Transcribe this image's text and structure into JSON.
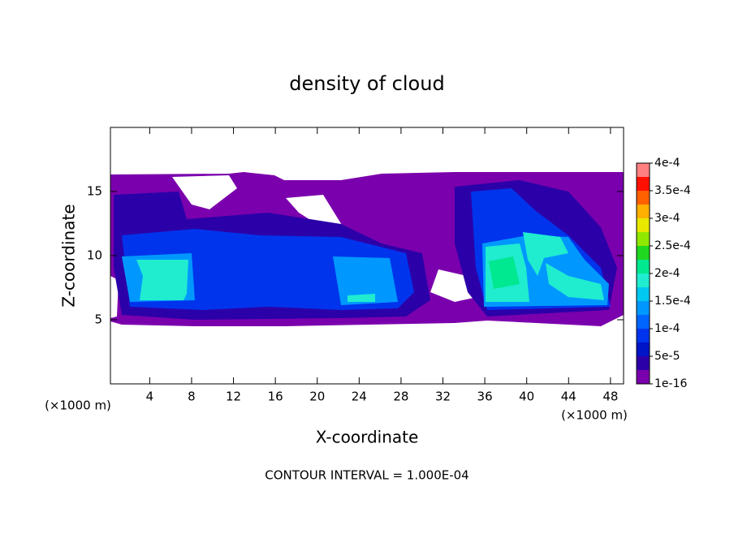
{
  "chart_data": {
    "type": "contour",
    "title": "density of cloud",
    "xlabel": "X-coordinate",
    "ylabel": "Z-coordinate",
    "x_unit_left": "(×1000 m)",
    "x_unit_right": "(×1000 m)",
    "annotation": "CONTOUR INTERVAL = 1.000E-04",
    "xlim": [
      0.25,
      49.25
    ],
    "xticks": [
      4,
      8,
      12,
      16,
      20,
      24,
      28,
      32,
      36,
      40,
      44,
      48
    ],
    "ylim": [
      0,
      20
    ],
    "yticks": [
      5,
      10,
      15
    ],
    "colorbar": {
      "lim": [
        0,
        0.0004
      ],
      "ticks": [
        1e-16,
        {
          "value": 5e-05,
          "label": "5e-5"
        },
        {
          "value": 0.0001,
          "label": "1e-4"
        },
        {
          "value": 0.00015,
          "label": "1.5e-4"
        },
        {
          "value": 0.0002,
          "label": "2e-4"
        },
        {
          "value": 0.00025,
          "label": "2.5e-4"
        },
        {
          "value": 0.0003,
          "label": "3e-4"
        },
        {
          "value": 0.00035,
          "label": "3.5e-4"
        },
        {
          "value": 0.0004,
          "label": "4e-4"
        }
      ],
      "colors": [
        "#7b00ad",
        "#2c00a8",
        "#0014c8",
        "#0034ec",
        "#0064ff",
        "#0098ff",
        "#00c8f0",
        "#20ecd0",
        "#00e890",
        "#20d820",
        "#90e800",
        "#e8e800",
        "#ffb000",
        "#ff6000",
        "#ff1000",
        "#ff8080"
      ]
    }
  }
}
